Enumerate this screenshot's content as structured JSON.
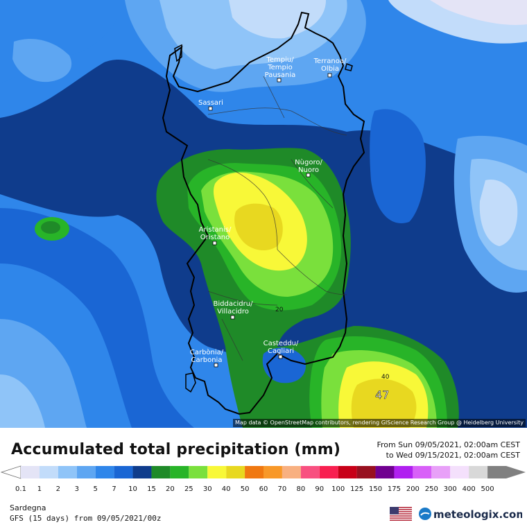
{
  "title": "Accumulated total precipitation (mm)",
  "period": {
    "from": "From Sun 09/05/2021, 02:00am CEST",
    "to": "to Wed 09/15/2021, 02:00am CEST"
  },
  "region": "Sardegna",
  "model": "GFS (15 days) from 09/05/2021/00z",
  "attribution": "Map data © OpenStreetMap contributors, rendering GIScience Research Group @ Heidelberg University",
  "brand": "meteologix.com",
  "legend": {
    "values": [
      "0.1",
      "1",
      "2",
      "3",
      "5",
      "7",
      "10",
      "15",
      "20",
      "25",
      "30",
      "40",
      "50",
      "60",
      "70",
      "80",
      "90",
      "100",
      "125",
      "150",
      "175",
      "200",
      "250",
      "300",
      "400",
      "500"
    ],
    "colors": [
      "#e4e4f6",
      "#c2dcfa",
      "#8fc4f8",
      "#5ea6f2",
      "#2f86ea",
      "#1a66d4",
      "#0f3c8c",
      "#1f8a28",
      "#28b428",
      "#7ae03c",
      "#f8f838",
      "#e8d820",
      "#f07810",
      "#f89828",
      "#f8b080",
      "#f85080",
      "#f82050",
      "#c80018",
      "#981020",
      "#700090",
      "#b020f0",
      "#d860f8",
      "#e8a0f8",
      "#f4e0fc",
      "#d8d8d8",
      "#808080"
    ]
  },
  "cities": [
    {
      "name": "Tempiu/\nTempio\nPausania"
    },
    {
      "name": "Terranoa/\nOlbia"
    },
    {
      "name": "Sassari"
    },
    {
      "name": "Nùgoro/\nNuoro"
    },
    {
      "name": "Aristanis/\nOristano"
    },
    {
      "name": "Biddacidru/\nVillacidro"
    },
    {
      "name": "Casteddu/\nCagliari"
    },
    {
      "name": "Carbònia/\nCarbonia"
    }
  ],
  "contour_labels": [
    "20",
    "40"
  ],
  "max_value": "47"
}
